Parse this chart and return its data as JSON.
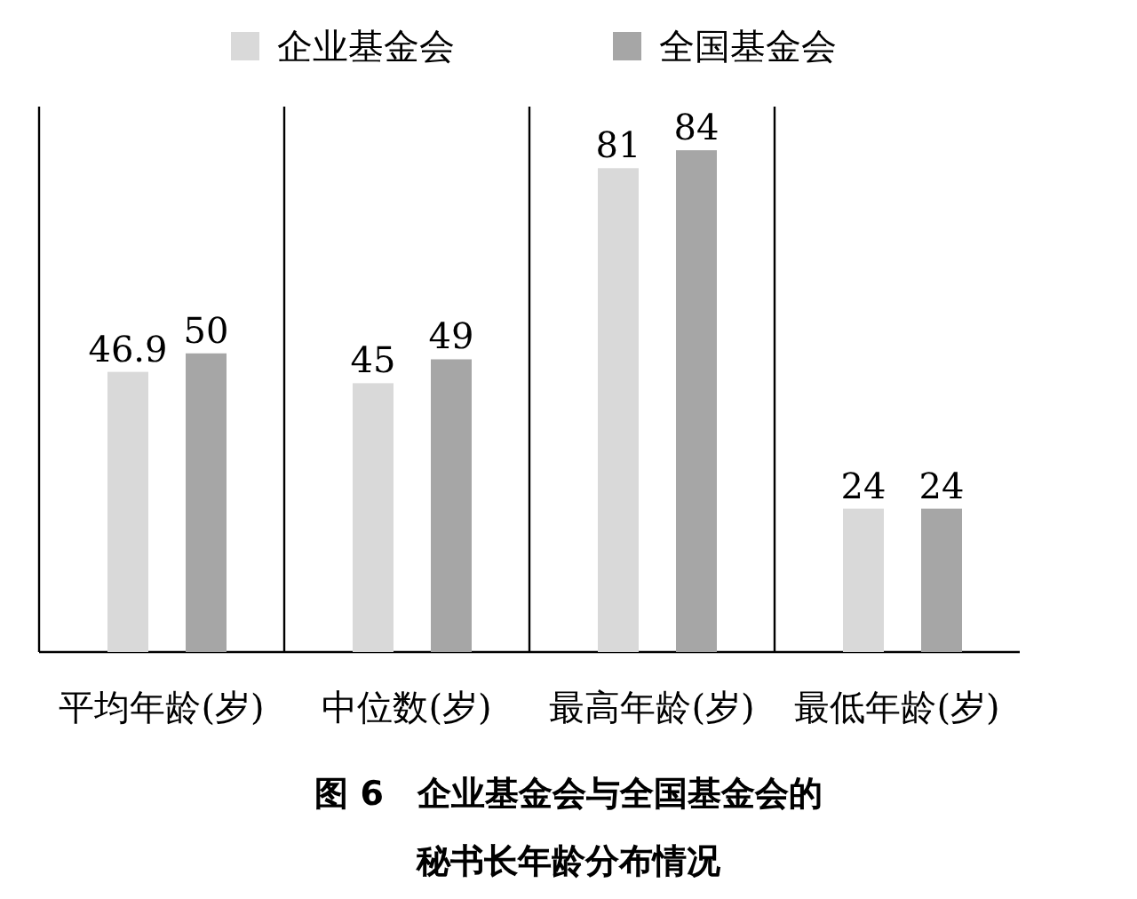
{
  "chart_data": {
    "type": "bar",
    "title": "图 6　企业基金会与全国基金会的秘书长年龄分布情况",
    "categories": [
      "平均年龄(岁)",
      "中位数(岁)",
      "最高年龄(岁)",
      "最低年龄(岁)"
    ],
    "series": [
      {
        "name": "企业基金会",
        "color": "#d9d9d9",
        "values": [
          46.9,
          45,
          81,
          24
        ]
      },
      {
        "name": "全国基金会",
        "color": "#a6a6a6",
        "values": [
          50,
          49,
          84,
          24
        ]
      }
    ],
    "data_labels": true,
    "tick_labels": "x",
    "legend": "top"
  }
}
